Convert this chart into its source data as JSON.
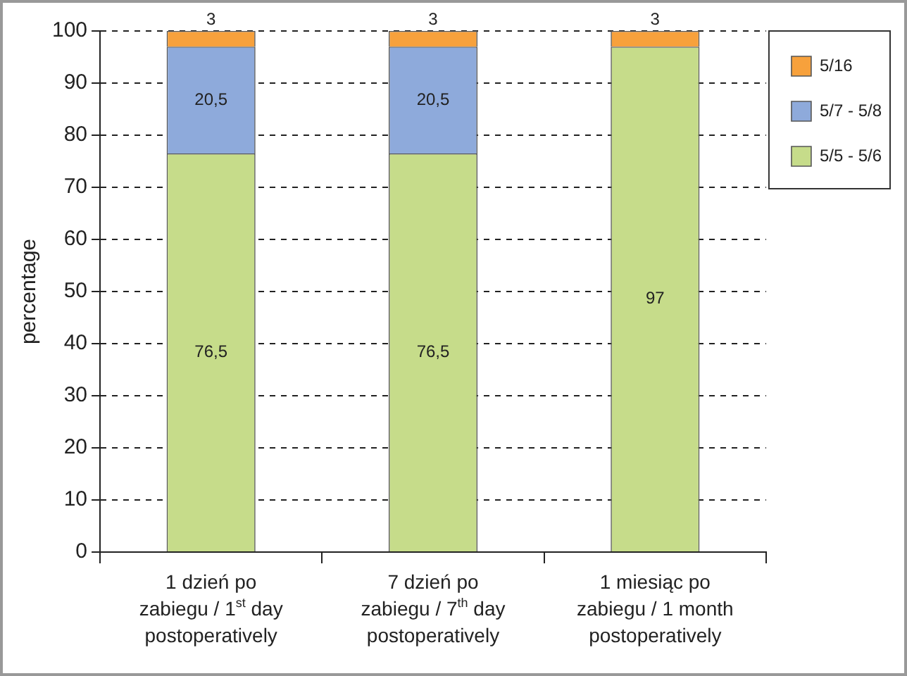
{
  "chart_data": {
    "type": "bar",
    "stacked": true,
    "ylabel": "percentage",
    "categories": [
      "1 dzień po zabiegu / 1$^{st}$ day postoperatively",
      "7 dzień po zabiegu / 7$^{th}$ day postoperatively",
      "1 miesiąc po zabiegu / 1 month postoperatively"
    ],
    "series": [
      {
        "name": "5/5 - 5/6",
        "color": "#c6dc8a",
        "values": [
          76.5,
          76.5,
          97
        ],
        "value_labels": [
          "76,5",
          "76,5",
          "97"
        ]
      },
      {
        "name": "5/7 - 5/8",
        "color": "#8eaadb",
        "values": [
          20.5,
          20.5,
          0
        ],
        "value_labels": [
          "20,5",
          "20,5",
          null
        ]
      },
      {
        "name": "5/16",
        "color": "#f7a13c",
        "values": [
          3,
          3,
          3
        ],
        "value_labels": [
          "3",
          "3",
          "3"
        ]
      }
    ],
    "ylim": [
      0,
      100
    ],
    "yticks": [
      0,
      10,
      20,
      30,
      40,
      50,
      60,
      70,
      80,
      90,
      100
    ],
    "grid": "y",
    "line_style": "dashed",
    "legend": "top right"
  }
}
